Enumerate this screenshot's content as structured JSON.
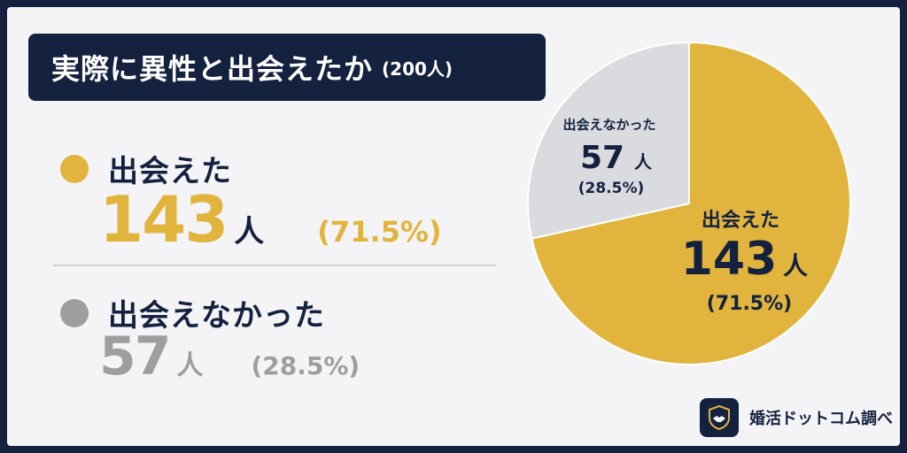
{
  "title": {
    "main": "実際に異性と出会えたか",
    "sub": "(200人)"
  },
  "legend": [
    {
      "label": "出会えた",
      "value": "143",
      "unit": "人",
      "percent": "(71.5%)",
      "color": "#e0b43d"
    },
    {
      "label": "出会えなかった",
      "value": "57",
      "unit": "人",
      "percent": "(28.5%)",
      "color": "#9e9e9e"
    }
  ],
  "pie_labels": [
    {
      "label": "出会えた",
      "value": "143",
      "unit": "人",
      "percent": "(71.5%)"
    },
    {
      "label": "出会えなかった",
      "value": "57",
      "unit": "人",
      "percent": "(28.5%)"
    }
  ],
  "brand": {
    "name": "婚活ドットコム調べ",
    "logo_icon": "handshake-icon"
  },
  "colors": {
    "navy": "#14213f",
    "gold": "#e0b43d",
    "gray_slice": "#dadbdf",
    "gray_text": "#9e9e9e"
  },
  "chart_data": {
    "type": "pie",
    "title": "実際に異性と出会えたか",
    "subtitle": "(200人)",
    "total": 200,
    "slices": [
      {
        "label": "出会えた",
        "value": 143,
        "percent": 71.5,
        "color": "#e0b43d"
      },
      {
        "label": "出会えなかった",
        "value": 57,
        "percent": 28.5,
        "color": "#dadbdf"
      }
    ]
  }
}
